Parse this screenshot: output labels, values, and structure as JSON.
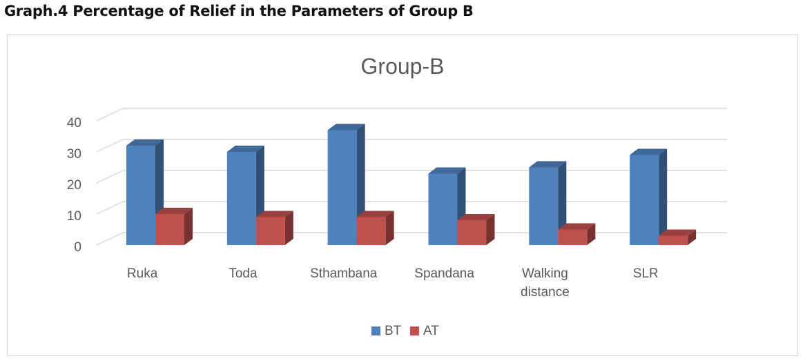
{
  "heading": "Graph.4 Percentage of Relief in the Parameters of Group B",
  "chart_data": {
    "type": "bar",
    "title": "Group-B",
    "categories": [
      "Ruka",
      "Toda",
      "Sthambana",
      "Spandana",
      "Walking distance",
      "SLR"
    ],
    "series": [
      {
        "name": "BT",
        "values": [
          32,
          30,
          37,
          23,
          25,
          29
        ],
        "color": "#4f81bd"
      },
      {
        "name": "AT",
        "values": [
          10,
          9,
          9,
          8,
          5,
          3
        ],
        "color": "#c0504d"
      }
    ],
    "yticks": [
      0,
      10,
      20,
      30,
      40
    ],
    "ylim": [
      0,
      40
    ],
    "xlabel": "",
    "ylabel": "",
    "grid": true,
    "legend_position": "bottom",
    "style": "3d-clustered-column"
  }
}
